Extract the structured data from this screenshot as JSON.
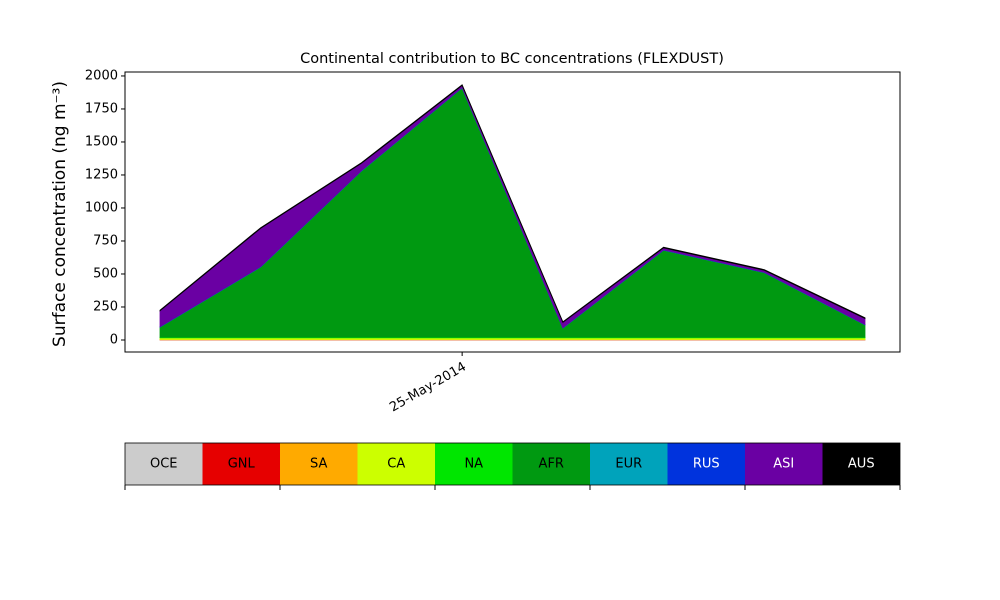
{
  "chart_data": {
    "type": "stacked_area",
    "title": "Continental contribution to BC concentrations (FLEXDUST)",
    "y_label": "Surface concentration (ng m⁻³)",
    "categories": [
      null,
      null,
      null,
      "25-May-2014",
      null,
      null,
      null,
      null
    ],
    "ylim": [
      -91,
      2030
    ],
    "yticks": [
      0,
      250,
      500,
      750,
      1000,
      1250,
      1500,
      1750,
      2000
    ],
    "series": [
      {
        "name": "OCE",
        "color": "#cccccc",
        "values": [
          1,
          1,
          1,
          1,
          1,
          1,
          1,
          1
        ]
      },
      {
        "name": "GNL",
        "color": "#e60000",
        "values": [
          1,
          1,
          1,
          1,
          1,
          1,
          1,
          1
        ]
      },
      {
        "name": "SA",
        "color": "#ffaa00",
        "values": [
          2,
          2,
          2,
          2,
          2,
          2,
          2,
          2
        ]
      },
      {
        "name": "CA",
        "color": "#ccff00",
        "values": [
          12,
          12,
          12,
          12,
          12,
          12,
          12,
          12
        ]
      },
      {
        "name": "NA",
        "color": "#00e600",
        "values": [
          5,
          5,
          5,
          5,
          5,
          5,
          5,
          5
        ]
      },
      {
        "name": "AFR",
        "color": "#009911",
        "values": [
          77,
          532,
          1259,
          1889,
          69,
          659,
          489,
          94
        ]
      },
      {
        "name": "EUR",
        "color": "#00a3bb",
        "values": [
          1,
          1,
          1,
          1,
          1,
          1,
          1,
          1
        ]
      },
      {
        "name": "RUS",
        "color": "#0033dd",
        "values": [
          2,
          2,
          2,
          2,
          2,
          2,
          2,
          2
        ]
      },
      {
        "name": "ASI",
        "color": "#6a00a3",
        "values": [
          120,
          290,
          55,
          15,
          40,
          15,
          15,
          45
        ]
      },
      {
        "name": "AUS",
        "color": "#000000",
        "values": [
          5,
          5,
          5,
          5,
          5,
          5,
          5,
          5
        ]
      }
    ]
  }
}
